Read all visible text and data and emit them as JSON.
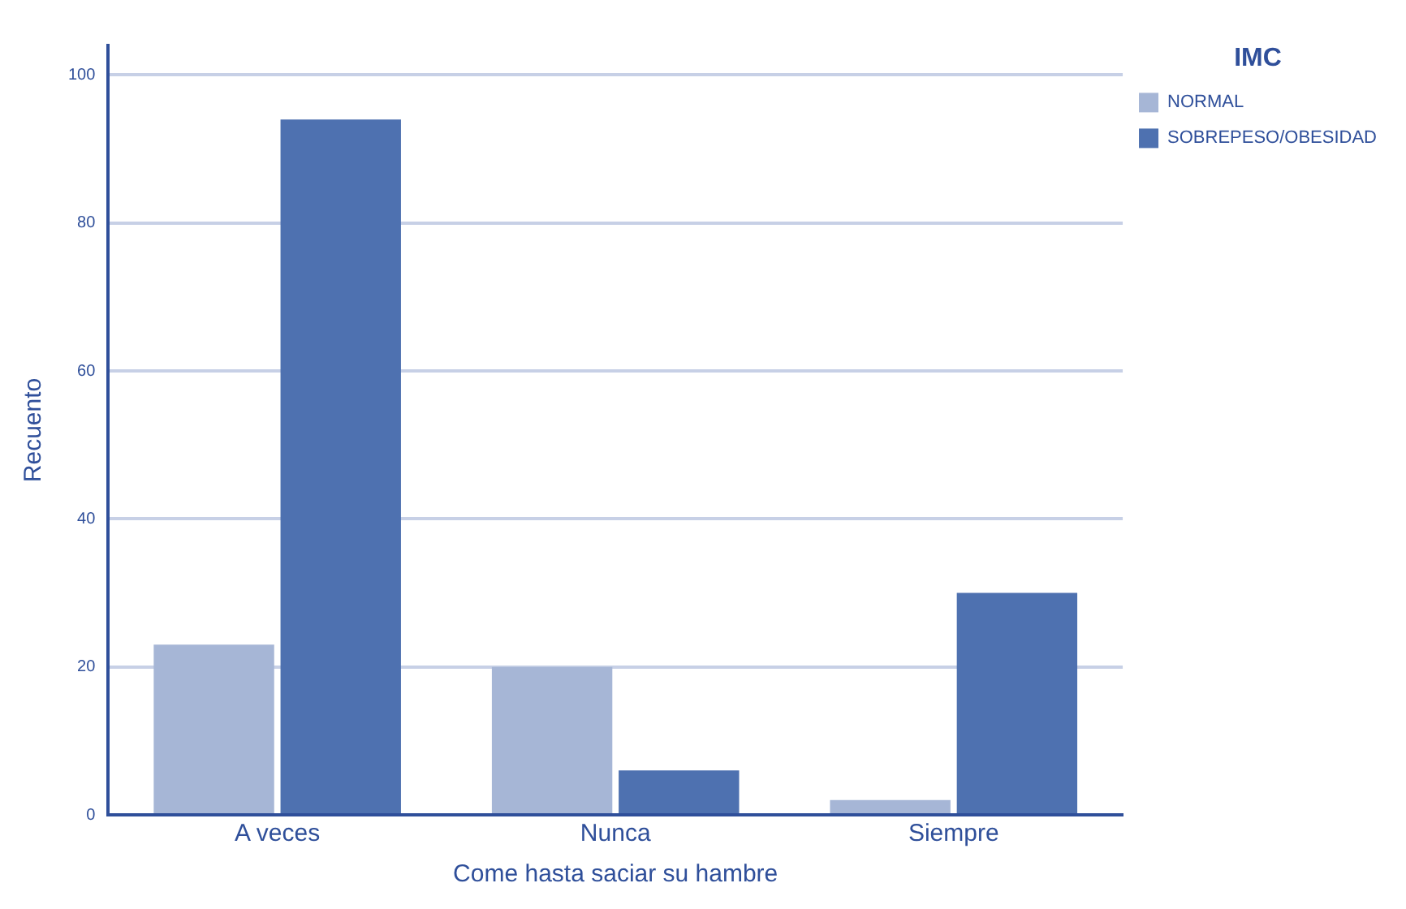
{
  "chart_data": {
    "type": "bar",
    "xlabel": "Come hasta saciar su hambre",
    "ylabel": "Recuento",
    "legend_title": "IMC",
    "categories": [
      "A veces",
      "Nunca",
      "Siempre"
    ],
    "series": [
      {
        "name": "NORMAL",
        "color": "#a6b6d6",
        "values": [
          23,
          20,
          2
        ]
      },
      {
        "name": "SOBREPESO/OBESIDAD",
        "color": "#4e71b0",
        "values": [
          94,
          6,
          30
        ]
      }
    ],
    "ylim": [
      0,
      104
    ],
    "yticks": [
      0,
      20,
      40,
      60,
      80,
      100
    ],
    "grid": "y",
    "legend": "top right"
  }
}
